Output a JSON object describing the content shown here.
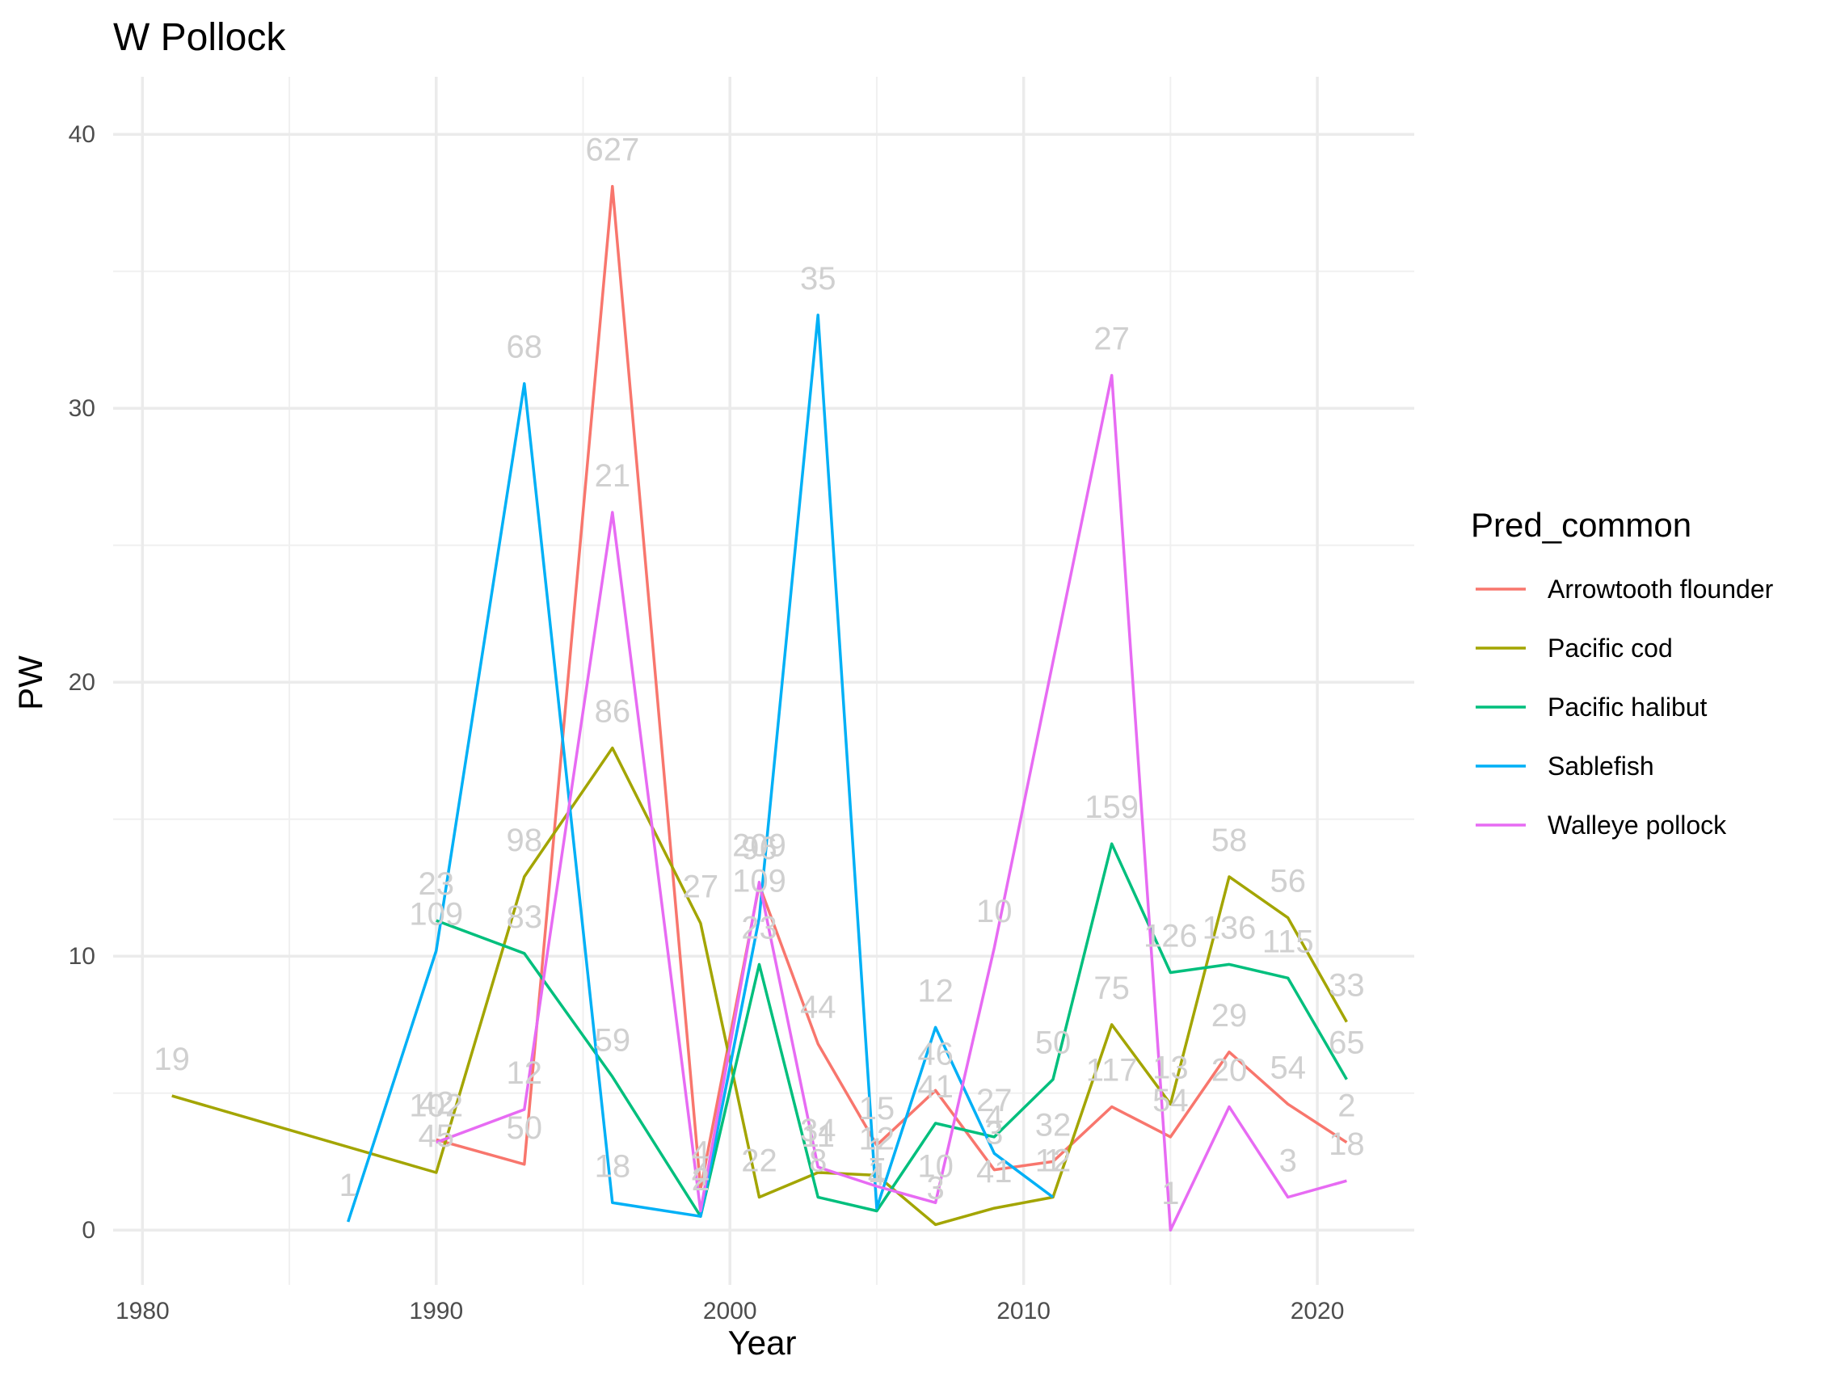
{
  "chart_data": {
    "type": "line",
    "title": "W Pollock",
    "xlabel": "Year",
    "ylabel": "PW",
    "xlim": [
      1979,
      2023.3
    ],
    "ylim": [
      -2.0,
      42.1
    ],
    "x_ticks": [
      1980,
      1990,
      2000,
      2010,
      2020
    ],
    "x_minor_ticks": [
      1985,
      1995,
      2005,
      2015
    ],
    "y_ticks": [
      0,
      10,
      20,
      30,
      40
    ],
    "y_minor_ticks": [
      5,
      15,
      25,
      35
    ],
    "grid": true,
    "legend": {
      "title": "Pred_common",
      "placement": "right"
    },
    "series": [
      {
        "name": "Arrowtooth flounder",
        "color": "#F8766D",
        "points": [
          {
            "x": 1990,
            "y": 3.3,
            "label": "42"
          },
          {
            "x": 1993,
            "y": 2.4,
            "label": "50"
          },
          {
            "x": 1996,
            "y": 38.1,
            "label": "627"
          },
          {
            "x": 1999,
            "y": 1.5,
            "label": "4"
          },
          {
            "x": 2001,
            "y": 12.6,
            "label": "96"
          },
          {
            "x": 2003,
            "y": 6.8,
            "label": "44"
          },
          {
            "x": 2005,
            "y": 3.1,
            "label": "15"
          },
          {
            "x": 2007,
            "y": 5.1,
            "label": "46"
          },
          {
            "x": 2009,
            "y": 2.2,
            "label": "3"
          },
          {
            "x": 2011,
            "y": 2.5,
            "label": "32"
          },
          {
            "x": 2013,
            "y": 4.5,
            "label": "117"
          },
          {
            "x": 2015,
            "y": 3.4,
            "label": "54"
          },
          {
            "x": 2017,
            "y": 6.5,
            "label": "29"
          },
          {
            "x": 2019,
            "y": 4.6,
            "label": "54"
          },
          {
            "x": 2021,
            "y": 3.2,
            "label": "2"
          }
        ]
      },
      {
        "name": "Pacific cod",
        "color": "#A3A500",
        "points": [
          {
            "x": 1981,
            "y": 4.9,
            "label": "19"
          },
          {
            "x": 1990,
            "y": 2.1,
            "label": "45"
          },
          {
            "x": 1993,
            "y": 12.9,
            "label": "98"
          },
          {
            "x": 1996,
            "y": 17.6,
            "label": "86"
          },
          {
            "x": 1999,
            "y": 11.2,
            "label": "27"
          },
          {
            "x": 2001,
            "y": 1.2,
            "label": "22"
          },
          {
            "x": 2003,
            "y": 2.1,
            "label": "11"
          },
          {
            "x": 2005,
            "y": 2.0,
            "label": "12"
          },
          {
            "x": 2007,
            "y": 0.2,
            "label": "3"
          },
          {
            "x": 2009,
            "y": 0.8,
            "label": "41"
          },
          {
            "x": 2011,
            "y": 1.2,
            "label": "12"
          },
          {
            "x": 2013,
            "y": 7.5,
            "label": "75"
          },
          {
            "x": 2015,
            "y": 4.6,
            "label": "13"
          },
          {
            "x": 2017,
            "y": 12.9,
            "label": "58"
          },
          {
            "x": 2019,
            "y": 11.4,
            "label": "56"
          },
          {
            "x": 2021,
            "y": 7.6,
            "label": "33"
          }
        ]
      },
      {
        "name": "Pacific halibut",
        "color": "#00BF7D",
        "points": [
          {
            "x": 1990,
            "y": 11.3,
            "label": "23"
          },
          {
            "x": 1993,
            "y": 10.1,
            "label": "83"
          },
          {
            "x": 1996,
            "y": 5.6,
            "label": "59"
          },
          {
            "x": 1999,
            "y": 0.5,
            "label": "2"
          },
          {
            "x": 2001,
            "y": 9.7,
            "label": "23"
          },
          {
            "x": 2003,
            "y": 1.2,
            "label": "8"
          },
          {
            "x": 2005,
            "y": 0.7,
            "label": "4"
          },
          {
            "x": 2007,
            "y": 3.9,
            "label": "41"
          },
          {
            "x": 2009,
            "y": 3.4,
            "label": "27"
          },
          {
            "x": 2011,
            "y": 5.5,
            "label": "50"
          },
          {
            "x": 2013,
            "y": 14.1,
            "label": "159"
          },
          {
            "x": 2015,
            "y": 9.4,
            "label": "126"
          },
          {
            "x": 2017,
            "y": 9.7,
            "label": "136"
          },
          {
            "x": 2019,
            "y": 9.2,
            "label": "115"
          },
          {
            "x": 2021,
            "y": 5.5,
            "label": "65"
          }
        ]
      },
      {
        "name": "Sablefish",
        "color": "#00B0F6",
        "points": [
          {
            "x": 1987,
            "y": 0.3,
            "label": "1"
          },
          {
            "x": 1990,
            "y": 10.2,
            "label": "109"
          },
          {
            "x": 1993,
            "y": 30.9,
            "label": "68"
          },
          {
            "x": 1996,
            "y": 1.0,
            "label": "18"
          },
          {
            "x": 1999,
            "y": 0.5,
            "label": "2"
          },
          {
            "x": 2001,
            "y": 11.4,
            "label": "109"
          },
          {
            "x": 2003,
            "y": 33.4,
            "label": "35"
          },
          {
            "x": 2005,
            "y": 0.8,
            "label": "1"
          },
          {
            "x": 2007,
            "y": 7.4,
            "label": "12"
          },
          {
            "x": 2009,
            "y": 2.8,
            "label": "4"
          },
          {
            "x": 2011,
            "y": 1.2,
            "label": "1"
          }
        ]
      },
      {
        "name": "Walleye pollock",
        "color": "#E76BF3",
        "points": [
          {
            "x": 1990,
            "y": 3.2,
            "label": "102"
          },
          {
            "x": 1993,
            "y": 4.4,
            "label": "12"
          },
          {
            "x": 1996,
            "y": 26.2,
            "label": "21"
          },
          {
            "x": 1999,
            "y": 0.7,
            "label": "4"
          },
          {
            "x": 2001,
            "y": 12.7,
            "label": "209"
          },
          {
            "x": 2003,
            "y": 2.3,
            "label": "34"
          },
          {
            "x": 2005,
            "y": 1.6,
            "label": "1"
          },
          {
            "x": 2007,
            "y": 1.0,
            "label": "10"
          },
          {
            "x": 2009,
            "y": 10.3,
            "label": "10"
          },
          {
            "x": 2013,
            "y": 31.2,
            "label": "27"
          },
          {
            "x": 2015,
            "y": 0.0,
            "label": "1"
          },
          {
            "x": 2017,
            "y": 4.5,
            "label": "20"
          },
          {
            "x": 2019,
            "y": 1.2,
            "label": "3"
          },
          {
            "x": 2021,
            "y": 1.8,
            "label": "18"
          }
        ]
      }
    ]
  }
}
